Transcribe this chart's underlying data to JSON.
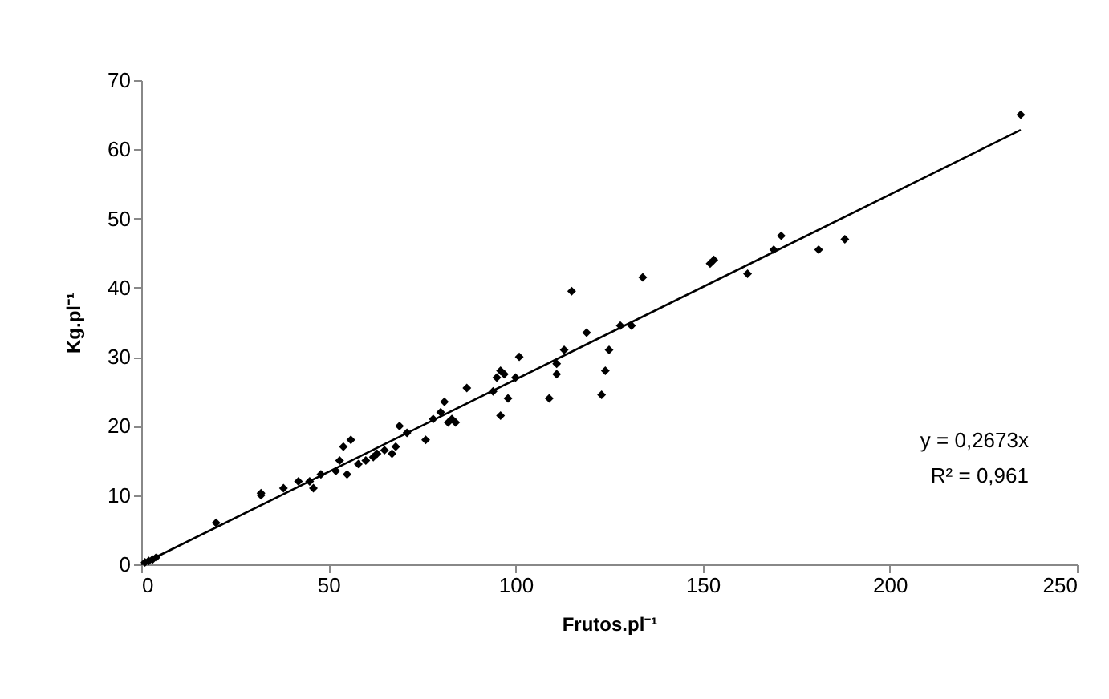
{
  "chart_data": {
    "type": "scatter",
    "xlabel": "Frutos.pl⁻¹",
    "ylabel": "Kg.pl⁻¹",
    "xlim": [
      0,
      250
    ],
    "ylim": [
      0,
      70
    ],
    "xticks": [
      0,
      50,
      100,
      150,
      200,
      250
    ],
    "yticks": [
      0,
      10,
      20,
      30,
      40,
      50,
      60,
      70
    ],
    "grid": false,
    "series": [
      {
        "marker": "diamond",
        "color": "#000000",
        "x": [
          1,
          2,
          3,
          4,
          20,
          32,
          32,
          38,
          42,
          45,
          46,
          48,
          52,
          53,
          54,
          55,
          56,
          58,
          60,
          62,
          63,
          65,
          67,
          68,
          69,
          71,
          76,
          78,
          80,
          81,
          82,
          83,
          84,
          87,
          94,
          95,
          96,
          96,
          97,
          98,
          100,
          101,
          109,
          111,
          111,
          113,
          115,
          119,
          123,
          124,
          125,
          128,
          131,
          134,
          152,
          153,
          162,
          169,
          171,
          181,
          188,
          235
        ],
        "values": [
          0.3,
          0.5,
          0.7,
          1,
          6,
          10,
          10.3,
          11,
          12,
          12,
          11,
          13,
          13.5,
          15,
          17,
          13,
          18,
          14.5,
          15,
          15.5,
          16,
          16.5,
          16,
          17,
          20,
          19,
          18,
          21,
          22,
          23.5,
          20.5,
          21,
          20.5,
          25.5,
          25,
          27,
          28,
          21.5,
          27.5,
          24,
          27,
          30,
          24,
          29,
          27.5,
          31,
          39.5,
          33.5,
          24.5,
          28,
          31,
          34.5,
          34.5,
          41.5,
          43.5,
          44,
          42,
          45.5,
          47.5,
          45.5,
          47,
          65
        ]
      },
      {
        "type": "line",
        "line_style": "solid",
        "color": "#000000",
        "x": [
          0,
          235
        ],
        "values": [
          0,
          62.8
        ]
      }
    ],
    "annotations": [
      "y = 0,2673x",
      "R² = 0,961"
    ]
  }
}
